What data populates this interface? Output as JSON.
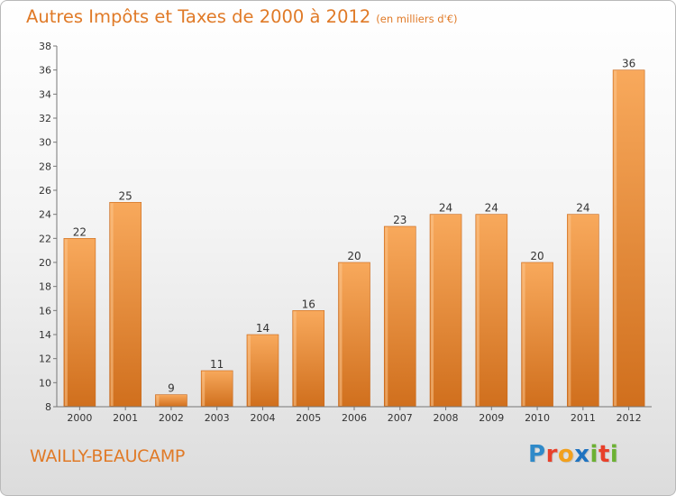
{
  "title": "Autres Impôts et Taxes de 2000 à 2012",
  "title_unit": "(en milliers d'€)",
  "commune": "WAILLY-BEAUCAMP",
  "logo": {
    "letters": [
      "P",
      "r",
      "o",
      "x",
      "i",
      "t",
      "i"
    ]
  },
  "colors": {
    "accent": "#e07a27",
    "bar_light": "#f6a55a",
    "bar_dark": "#d06f1d"
  },
  "chart_data": {
    "type": "bar",
    "title": "Autres Impôts et Taxes de 2000 à 2012",
    "xlabel": "",
    "ylabel": "",
    "categories": [
      "2000",
      "2001",
      "2002",
      "2003",
      "2004",
      "2005",
      "2006",
      "2007",
      "2008",
      "2009",
      "2010",
      "2011",
      "2012"
    ],
    "values": [
      22,
      25,
      9,
      11,
      14,
      16,
      20,
      23,
      24,
      24,
      20,
      24,
      36
    ],
    "ylim": [
      8,
      38
    ],
    "yticks": [
      8,
      10,
      12,
      14,
      16,
      18,
      20,
      22,
      24,
      26,
      28,
      30,
      32,
      34,
      36,
      38
    ],
    "grid": false,
    "legend": "none"
  }
}
